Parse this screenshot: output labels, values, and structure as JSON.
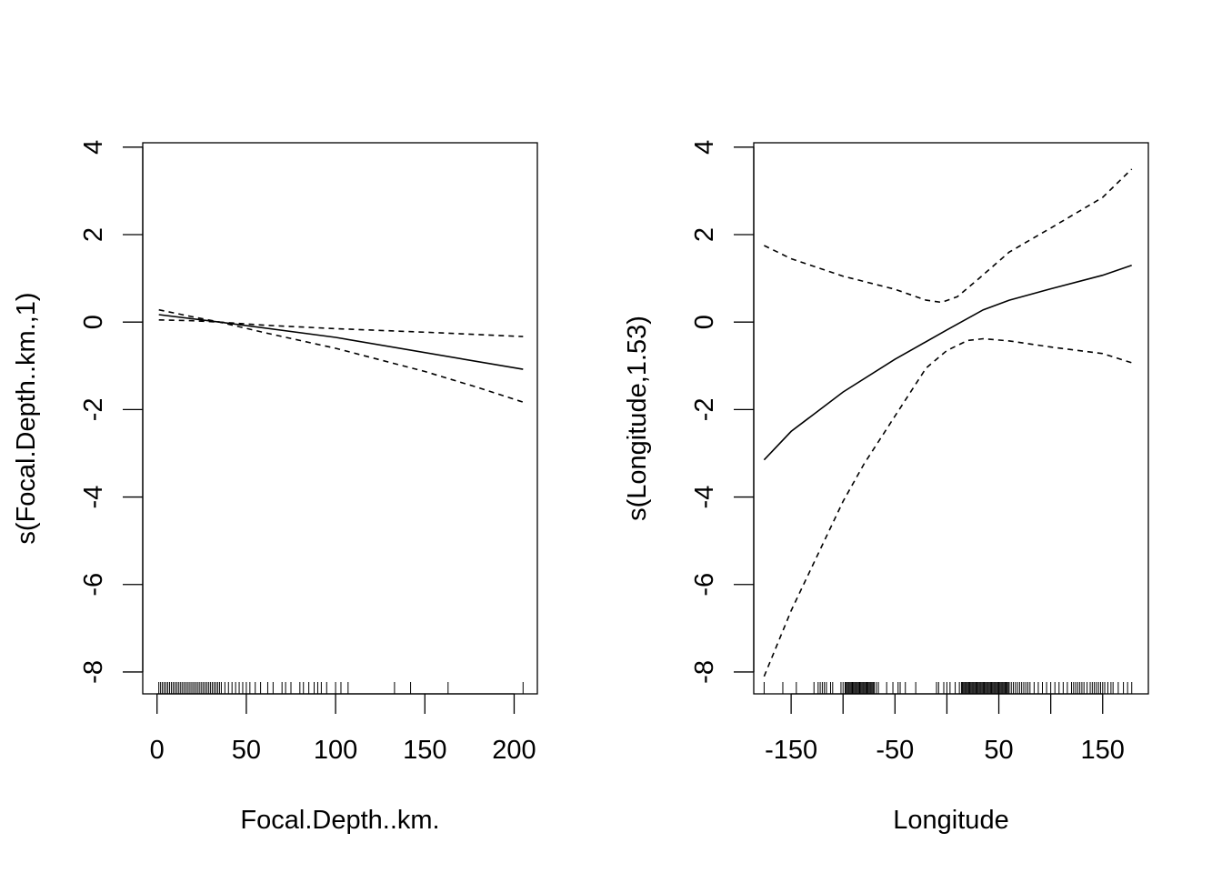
{
  "chart_data": [
    {
      "type": "line",
      "xlabel": "Focal.Depth..km.",
      "ylabel": "s(Focal.Depth..km.,1)",
      "xlim": [
        -8,
        213
      ],
      "ylim": [
        -8.5,
        4.1
      ],
      "x_ticks": [
        0,
        50,
        100,
        150,
        200
      ],
      "x_tick_labels": [
        "0",
        "50",
        "100",
        "150",
        "200"
      ],
      "y_ticks": [
        -8,
        -6,
        -4,
        -2,
        0,
        2,
        4
      ],
      "y_tick_labels": [
        "-8",
        "-6",
        "-4",
        "-2",
        "0",
        "2",
        "4"
      ],
      "grid": false,
      "series": [
        {
          "style": "solid",
          "x": [
            1,
            35,
            100,
            205
          ],
          "y": [
            0.17,
            0.0,
            -0.35,
            -1.08
          ]
        },
        {
          "style": "dashed",
          "x": [
            1,
            20,
            35,
            60,
            100,
            150,
            205
          ],
          "y": [
            0.05,
            0.03,
            0.0,
            -0.07,
            -0.15,
            -0.23,
            -0.33
          ]
        },
        {
          "style": "dashed",
          "x": [
            1,
            20,
            35,
            60,
            100,
            150,
            180,
            205
          ],
          "y": [
            0.28,
            0.12,
            0.0,
            -0.24,
            -0.6,
            -1.13,
            -1.5,
            -1.83
          ]
        }
      ],
      "rug": [
        1,
        2,
        3,
        4,
        5,
        6,
        7,
        8,
        9,
        10,
        11,
        12,
        13,
        14,
        15,
        16,
        17,
        18,
        19,
        20,
        21,
        22,
        23,
        24,
        25,
        26,
        27,
        28,
        29,
        30,
        31,
        32,
        33,
        34,
        35,
        36,
        38,
        40,
        42,
        44,
        46,
        48,
        50,
        52,
        55,
        58,
        62,
        65,
        70,
        72,
        75,
        80,
        82,
        85,
        88,
        90,
        92,
        95,
        100,
        103,
        107,
        133,
        142,
        163,
        205
      ]
    },
    {
      "type": "line",
      "xlabel": "Longitude",
      "ylabel": "s(Longitude,1.53)",
      "xlim": [
        -186,
        194
      ],
      "ylim": [
        -8.5,
        4.1
      ],
      "x_ticks": [
        -150,
        -100,
        -50,
        0,
        50,
        100,
        150
      ],
      "x_tick_labels": [
        "-150",
        "",
        "-50",
        "",
        "50",
        "",
        "150"
      ],
      "y_ticks": [
        -8,
        -6,
        -4,
        -2,
        0,
        2,
        4
      ],
      "y_tick_labels": [
        "-8",
        "-6",
        "-4",
        "-2",
        "0",
        "2",
        "4"
      ],
      "grid": false,
      "series": [
        {
          "style": "solid",
          "x": [
            -176,
            -150,
            -100,
            -50,
            0,
            35,
            60,
            100,
            150,
            178
          ],
          "y": [
            -3.15,
            -2.5,
            -1.6,
            -0.85,
            -0.18,
            0.28,
            0.5,
            0.76,
            1.07,
            1.3
          ]
        },
        {
          "style": "dashed",
          "x": [
            -176,
            -150,
            -100,
            -50,
            -20,
            -5,
            10,
            30,
            60,
            100,
            150,
            178
          ],
          "y": [
            1.75,
            1.45,
            1.05,
            0.75,
            0.5,
            0.45,
            0.58,
            0.98,
            1.6,
            2.15,
            2.85,
            3.5
          ]
        },
        {
          "style": "dashed",
          "x": [
            -176,
            -150,
            -100,
            -80,
            -50,
            -20,
            0,
            20,
            35,
            60,
            100,
            150,
            178
          ],
          "y": [
            -8.1,
            -6.6,
            -4.1,
            -3.25,
            -2.15,
            -1.05,
            -0.65,
            -0.42,
            -0.38,
            -0.43,
            -0.57,
            -0.72,
            -0.93
          ]
        }
      ],
      "rug": [
        -176,
        -158,
        -145,
        -128,
        -124,
        -122,
        -120,
        -118,
        -116,
        -112,
        -110,
        -102,
        -100,
        -98,
        -97,
        -96,
        -95,
        -94,
        -93,
        -92,
        -91,
        -90,
        -89,
        -88,
        -87,
        -86,
        -85,
        -84,
        -83,
        -82,
        -81,
        -80,
        -79,
        -78,
        -77,
        -76,
        -75,
        -74,
        -73,
        -72,
        -71,
        -70,
        -68,
        -66,
        -58,
        -52,
        -47,
        -45,
        -40,
        -30,
        -10,
        -8,
        -3,
        0,
        3,
        8,
        12,
        14,
        15,
        16,
        17,
        18,
        19,
        20,
        21,
        22,
        23,
        24,
        25,
        26,
        27,
        28,
        29,
        30,
        31,
        32,
        33,
        34,
        35,
        36,
        37,
        38,
        39,
        40,
        41,
        42,
        43,
        44,
        45,
        46,
        47,
        48,
        49,
        50,
        51,
        52,
        53,
        54,
        55,
        56,
        57,
        58,
        59,
        60,
        62,
        64,
        66,
        68,
        70,
        72,
        74,
        76,
        78,
        80,
        84,
        88,
        92,
        96,
        100,
        104,
        108,
        112,
        116,
        120,
        122,
        124,
        126,
        128,
        130,
        132,
        135,
        138,
        140,
        142,
        144,
        146,
        148,
        150,
        152,
        155,
        158,
        160,
        165,
        170,
        174,
        178
      ]
    }
  ]
}
